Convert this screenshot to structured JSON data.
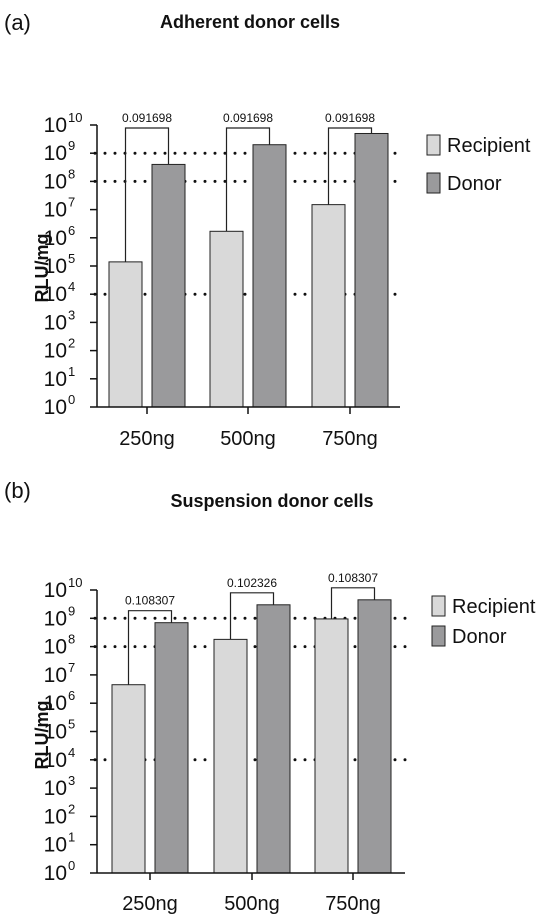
{
  "chart_data": [
    {
      "type": "bar",
      "panel_label": "(a)",
      "title": "Adherent donor cells",
      "ylabel": "RLU/mg",
      "yscale": "log",
      "ylim_exponents": [
        0,
        10
      ],
      "ytick_base": "10",
      "ytick_exponents": [
        "0",
        "1",
        "2",
        "3",
        "4",
        "5",
        "6",
        "7",
        "8",
        "9",
        "10"
      ],
      "categories": [
        "250ng",
        "500ng",
        "750ng"
      ],
      "series": [
        {
          "name": "Recipient",
          "color": "#d9d9d9",
          "values": [
            140000,
            1700000,
            15000000
          ]
        },
        {
          "name": "Donor",
          "color": "#9a9a9c",
          "values": [
            400000000,
            2000000000,
            5000000000
          ]
        }
      ],
      "reference_lines": [
        1000000000,
        100000000,
        10000
      ],
      "p_values": [
        "0.091698",
        "0.091698",
        "0.091698"
      ],
      "legend_position": "right"
    },
    {
      "type": "bar",
      "panel_label": "(b)",
      "title": "Suspension donor cells",
      "ylabel": "RLU/mg",
      "yscale": "log",
      "ylim_exponents": [
        0,
        10
      ],
      "ytick_base": "10",
      "ytick_exponents": [
        "0",
        "1",
        "2",
        "3",
        "4",
        "5",
        "6",
        "7",
        "8",
        "9",
        "10"
      ],
      "categories": [
        "250ng",
        "500ng",
        "750ng"
      ],
      "series": [
        {
          "name": "Recipient",
          "color": "#d9d9d9",
          "values": [
            4500000,
            180000000,
            950000000
          ]
        },
        {
          "name": "Donor",
          "color": "#9a9a9c",
          "values": [
            700000000,
            3000000000,
            4500000000
          ]
        }
      ],
      "reference_lines": [
        1000000000,
        100000000,
        10000
      ],
      "p_values": [
        "0.108307",
        "0.102326",
        "0.108307"
      ],
      "legend_position": "right"
    }
  ]
}
